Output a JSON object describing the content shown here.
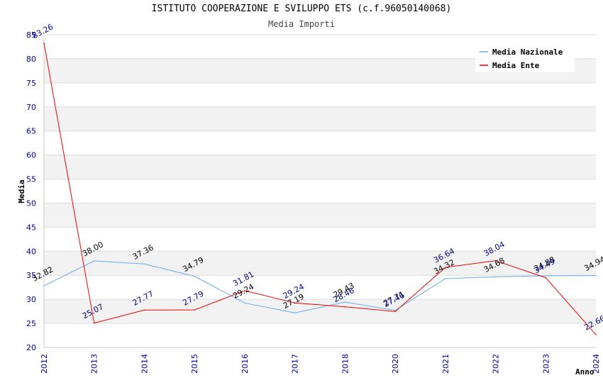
{
  "chart_data": {
    "type": "line",
    "title": "ISTITUTO COOPERAZIONE E SVILUPPO ETS (c.f.96050140068)",
    "subtitle": "Media Importi",
    "xlabel": "Anno",
    "ylabel": "Media",
    "categories": [
      "2012",
      "2013",
      "2014",
      "2015",
      "2016",
      "2017",
      "2018",
      "2020",
      "2021",
      "2022",
      "2023",
      "2024"
    ],
    "ylim": [
      20,
      85
    ],
    "yticks": [
      20,
      25,
      30,
      35,
      40,
      45,
      50,
      55,
      60,
      65,
      70,
      75,
      80,
      85
    ],
    "grid": true,
    "legend_position": "top-right",
    "series": [
      {
        "name": "Media Nazionale",
        "color": "#66aaee",
        "label_color": "#000000",
        "values": [
          32.82,
          38.0,
          37.36,
          34.79,
          29.24,
          27.19,
          29.43,
          27.71,
          34.32,
          34.68,
          34.88,
          34.94
        ],
        "labels": [
          "32.82",
          "38.00",
          "37.36",
          "34.79",
          "29.24",
          "27.19",
          "29.43",
          "27.71",
          "34.32",
          "34.68",
          "34.88",
          "34.94"
        ]
      },
      {
        "name": "Media Ente",
        "color": "#ee0000",
        "label_color": "#000088",
        "values": [
          83.26,
          25.07,
          27.77,
          27.79,
          31.81,
          29.24,
          28.46,
          27.46,
          36.64,
          38.04,
          34.49,
          22.66
        ],
        "labels": [
          "83.26",
          "25.07",
          "27.77",
          "27.79",
          "31.81",
          "29.24",
          "28.46",
          "27.46",
          "36.64",
          "38.04",
          "34.49",
          "22.66"
        ]
      }
    ]
  }
}
